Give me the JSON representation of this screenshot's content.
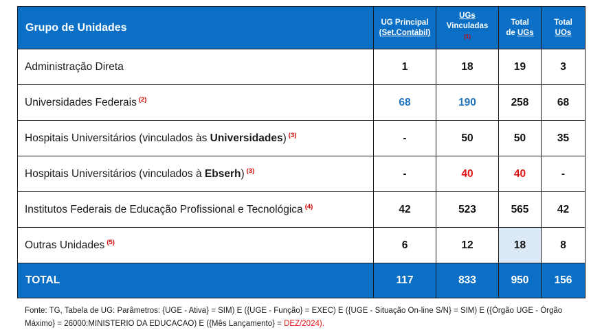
{
  "header": {
    "group": "Grupo de Unidades",
    "col1_line1": "UG Principal",
    "col1_line2": "(Set.Contábil)",
    "col2_line1": "UGs",
    "col2_line2": "Vinculadas",
    "col2_note": "(1)",
    "col3_line1": "Total",
    "col3_line2_prefix": "de ",
    "col3_line2_u": "UGs",
    "col4_line1": "Total",
    "col4_line2": "UOs"
  },
  "rows": [
    {
      "label": "Administração Direta",
      "note": "",
      "ug_principal": "1",
      "ugs_vinculadas": "18",
      "total_ugs": "19",
      "total_uos": "3"
    },
    {
      "label": "Universidades Federais",
      "note": "(2)",
      "ug_principal": "68",
      "ugs_vinculadas": "190",
      "total_ugs": "258",
      "total_uos": "68"
    },
    {
      "label_prefix": "Hospitais Universitários (vinculados às ",
      "label_bold": "Universidades",
      "label_suffix": ")",
      "note": "(3)",
      "ug_principal": "-",
      "ugs_vinculadas": "50",
      "total_ugs": "50",
      "total_uos": "35"
    },
    {
      "label_prefix": "Hospitais Universitários (vinculados à ",
      "label_bold": "Ebserh",
      "label_suffix": ")",
      "note": "(3)",
      "ug_principal": "-",
      "ugs_vinculadas": "40",
      "total_ugs": "40",
      "total_uos": "-"
    },
    {
      "label": "Institutos Federais de Educação Profissional e Tecnológica",
      "note": "(4)",
      "ug_principal": "42",
      "ugs_vinculadas": "523",
      "total_ugs": "565",
      "total_uos": "42"
    },
    {
      "label": "Outras Unidades",
      "note": "(5)",
      "ug_principal": "6",
      "ugs_vinculadas": "12",
      "total_ugs": "18",
      "total_uos": "8"
    }
  ],
  "total": {
    "label": "TOTAL",
    "ug_principal": "117",
    "ugs_vinculadas": "833",
    "total_ugs": "950",
    "total_uos": "156"
  },
  "source": {
    "text": "Fonte: TG, Tabela de UG: Parâmetros: {UGE - Ativa} = SIM) E ({UGE - Função} = EXEC) E ({UGE - Situação On-line S/N} = SIM) E ({Órgão UGE - Órgão Máximo} = 26000:MINISTERIO DA EDUCACAO) E ({Mês Lançamento} = ",
    "highlight": "DEZ/2024).",
    "highlight_color": "#e01414"
  },
  "colors": {
    "header_bg": "#0b6fc6",
    "blue_value": "#1f74bd",
    "red_value": "#e01414",
    "highlight_cell": "#dbe9f6"
  }
}
